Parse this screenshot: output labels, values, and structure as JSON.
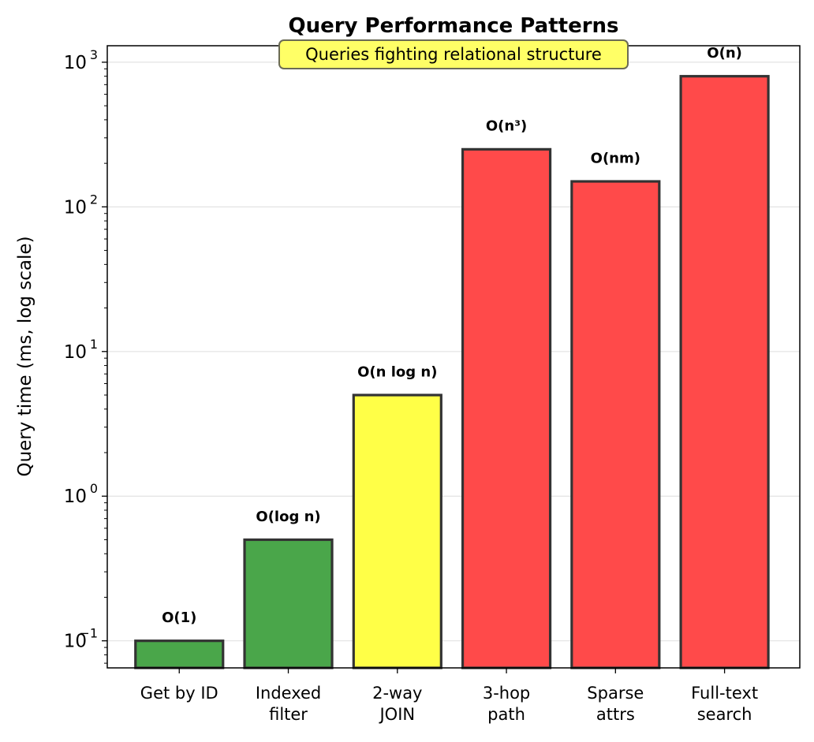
{
  "chart_data": {
    "type": "bar",
    "title": "Query Performance Patterns",
    "annotation": "Queries fighting relational structure",
    "ylabel": "Query time (ms, log scale)",
    "xlabel": "",
    "yscale": "log",
    "ylim": [
      0.065,
      1300
    ],
    "grid": "y-major",
    "categories": [
      "Get by ID",
      "Indexed filter",
      "2-way JOIN",
      "3-hop path",
      "Sparse attrs",
      "Full-text search"
    ],
    "category_lines": [
      [
        "Get by ID"
      ],
      [
        "Indexed",
        "filter"
      ],
      [
        "2-way",
        "JOIN"
      ],
      [
        "3-hop",
        "path"
      ],
      [
        "Sparse",
        "attrs"
      ],
      [
        "Full-text",
        "search"
      ]
    ],
    "values": [
      0.1,
      0.5,
      5,
      250,
      150,
      800
    ],
    "complexity_labels": [
      "O(1)",
      "O(log n)",
      "O(n log n)",
      "O(n³)",
      "O(nm)",
      "O(n)"
    ],
    "bar_colors": [
      "#4aa64a",
      "#4aa64a",
      "#ffff47",
      "#ff4a4a",
      "#ff4a4a",
      "#ff4a4a"
    ],
    "bar_edge_color": "#333333",
    "annotation_bg": "#ffff66",
    "yticks": [
      {
        "value": 0.1,
        "base": "10",
        "exp": "−1"
      },
      {
        "value": 1,
        "base": "10",
        "exp": "0"
      },
      {
        "value": 10,
        "base": "10",
        "exp": "1"
      },
      {
        "value": 100,
        "base": "10",
        "exp": "2"
      },
      {
        "value": 1000,
        "base": "10",
        "exp": "3"
      }
    ]
  }
}
